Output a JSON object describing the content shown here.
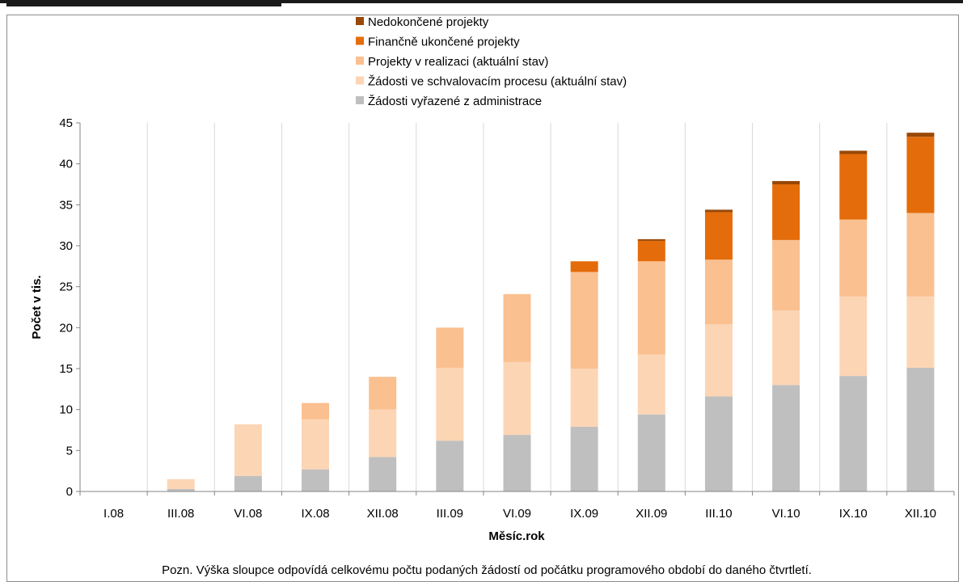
{
  "chart_data": {
    "type": "bar",
    "stacked": true,
    "title": "",
    "xlabel": "Měsíc.rok",
    "ylabel": "Počet v tis.",
    "ylim": [
      0,
      45
    ],
    "yticks": [
      0,
      5,
      10,
      15,
      20,
      25,
      30,
      35,
      40,
      45
    ],
    "grid": "vertical",
    "legend": "top-center",
    "categories": [
      "I.08",
      "III.08",
      "VI.08",
      "IX.08",
      "XII.08",
      "III.09",
      "VI.09",
      "IX.09",
      "XII.09",
      "III.10",
      "VI.10",
      "IX.10",
      "XII.10"
    ],
    "series": [
      {
        "name": "Žádosti vyřazené z administrace",
        "color": "#bfbfbf",
        "values": [
          0,
          0.3,
          1.9,
          2.7,
          4.2,
          6.2,
          6.9,
          7.9,
          9.4,
          11.6,
          13.0,
          14.1,
          15.1
        ]
      },
      {
        "name": "Žádosti ve schvalovacím procesu (aktuální stav)",
        "color": "#fcd5b5",
        "values": [
          0,
          1.2,
          6.3,
          6.1,
          5.8,
          8.9,
          8.9,
          7.1,
          7.3,
          8.8,
          9.1,
          9.7,
          8.7
        ]
      },
      {
        "name": "Projekty v realizaci (aktuální stav)",
        "color": "#fac090",
        "values": [
          0,
          0,
          0,
          2.0,
          4.0,
          4.9,
          8.3,
          11.8,
          11.4,
          7.9,
          8.6,
          9.4,
          10.2
        ]
      },
      {
        "name": "Finančně ukončené projekty",
        "color": "#e46c0a",
        "values": [
          0,
          0,
          0,
          0,
          0,
          0,
          0,
          1.3,
          2.5,
          5.8,
          6.8,
          8.0,
          9.3
        ]
      },
      {
        "name": "Nedokončené projekty",
        "color": "#984807",
        "values": [
          0,
          0,
          0,
          0,
          0,
          0,
          0,
          0,
          0.2,
          0.3,
          0.4,
          0.4,
          0.5
        ]
      }
    ]
  },
  "note": "Pozn. Výška sloupce odpovídá celkovému počtu podaných žádostí od počátku programového období do daného čtvrtletí."
}
